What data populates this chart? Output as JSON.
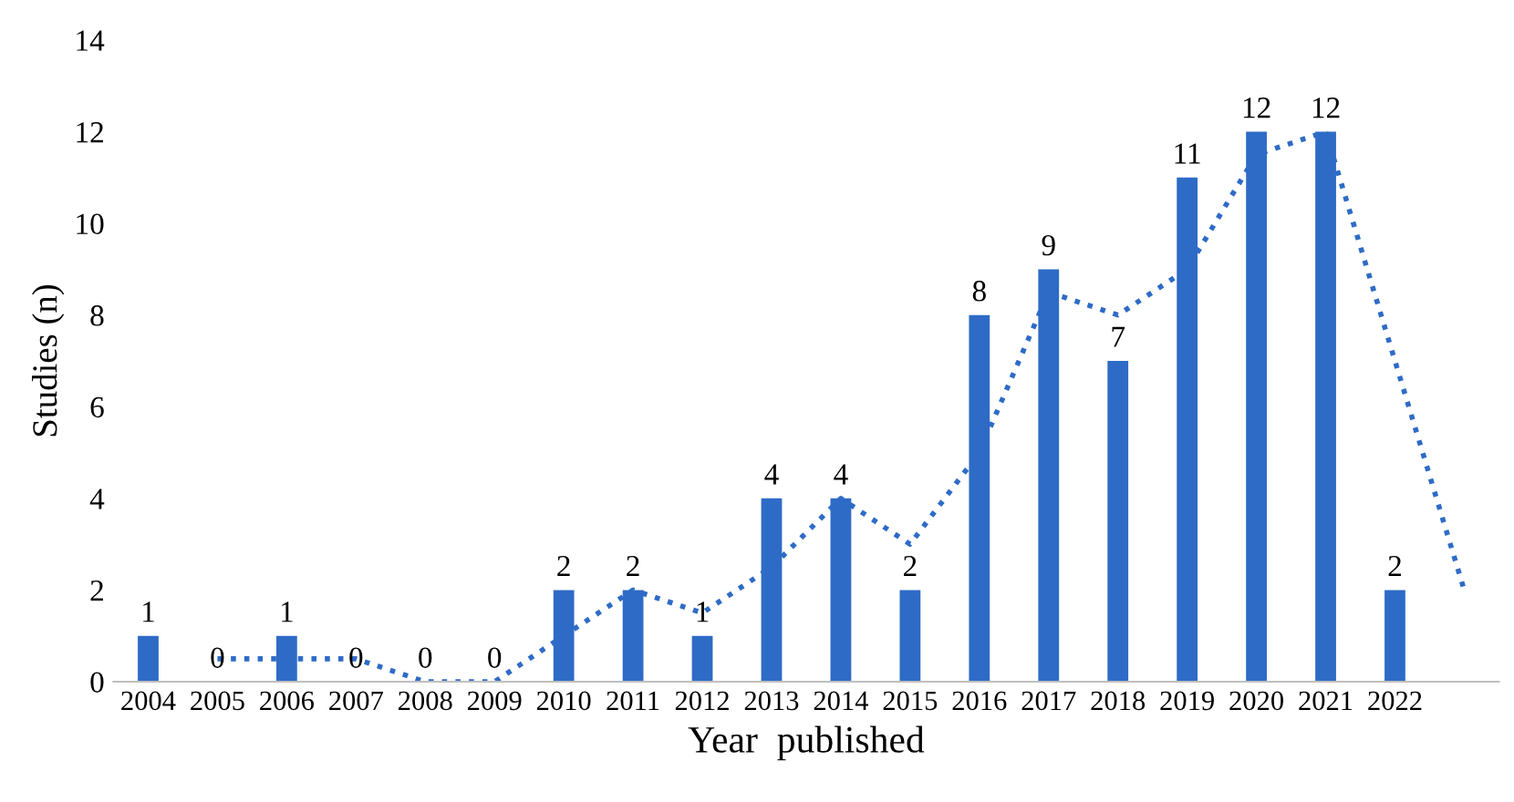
{
  "chart_data": {
    "type": "bar",
    "xlabel": "Year  published",
    "ylabel": "Studies (n)",
    "categories": [
      "2004",
      "2005",
      "2006",
      "2007",
      "2008",
      "2009",
      "2010",
      "2011",
      "2012",
      "2013",
      "2014",
      "2015",
      "2016",
      "2017",
      "2018",
      "2019",
      "2020",
      "2021",
      "2022",
      null
    ],
    "series": [
      {
        "color": "#2e6bc6",
        "values": [
          1,
          0,
          1,
          0,
          0,
          0,
          2,
          2,
          1,
          4,
          4,
          2,
          8,
          9,
          7,
          11,
          12,
          12,
          2,
          null
        ],
        "value_labels": [
          "1",
          "0",
          "1",
          "0",
          "0",
          "0",
          "2",
          "2",
          "1",
          "4",
          "4",
          "2",
          "8",
          "9",
          "7",
          "11",
          "12",
          "12",
          "2",
          null
        ]
      },
      {
        "type": "line",
        "color": "#2e6bc6",
        "line_style": "dotted",
        "marker": "none",
        "values": [
          null,
          0.5,
          0.5,
          0.5,
          0,
          0,
          1,
          2,
          1.5,
          2.5,
          4,
          3,
          5,
          8.5,
          8,
          9,
          11.5,
          12,
          7,
          2
        ]
      }
    ],
    "ylim": [
      0,
      14
    ],
    "yticks": [
      0,
      2,
      4,
      6,
      8,
      10,
      12,
      14
    ],
    "grid": false,
    "legend": false
  }
}
